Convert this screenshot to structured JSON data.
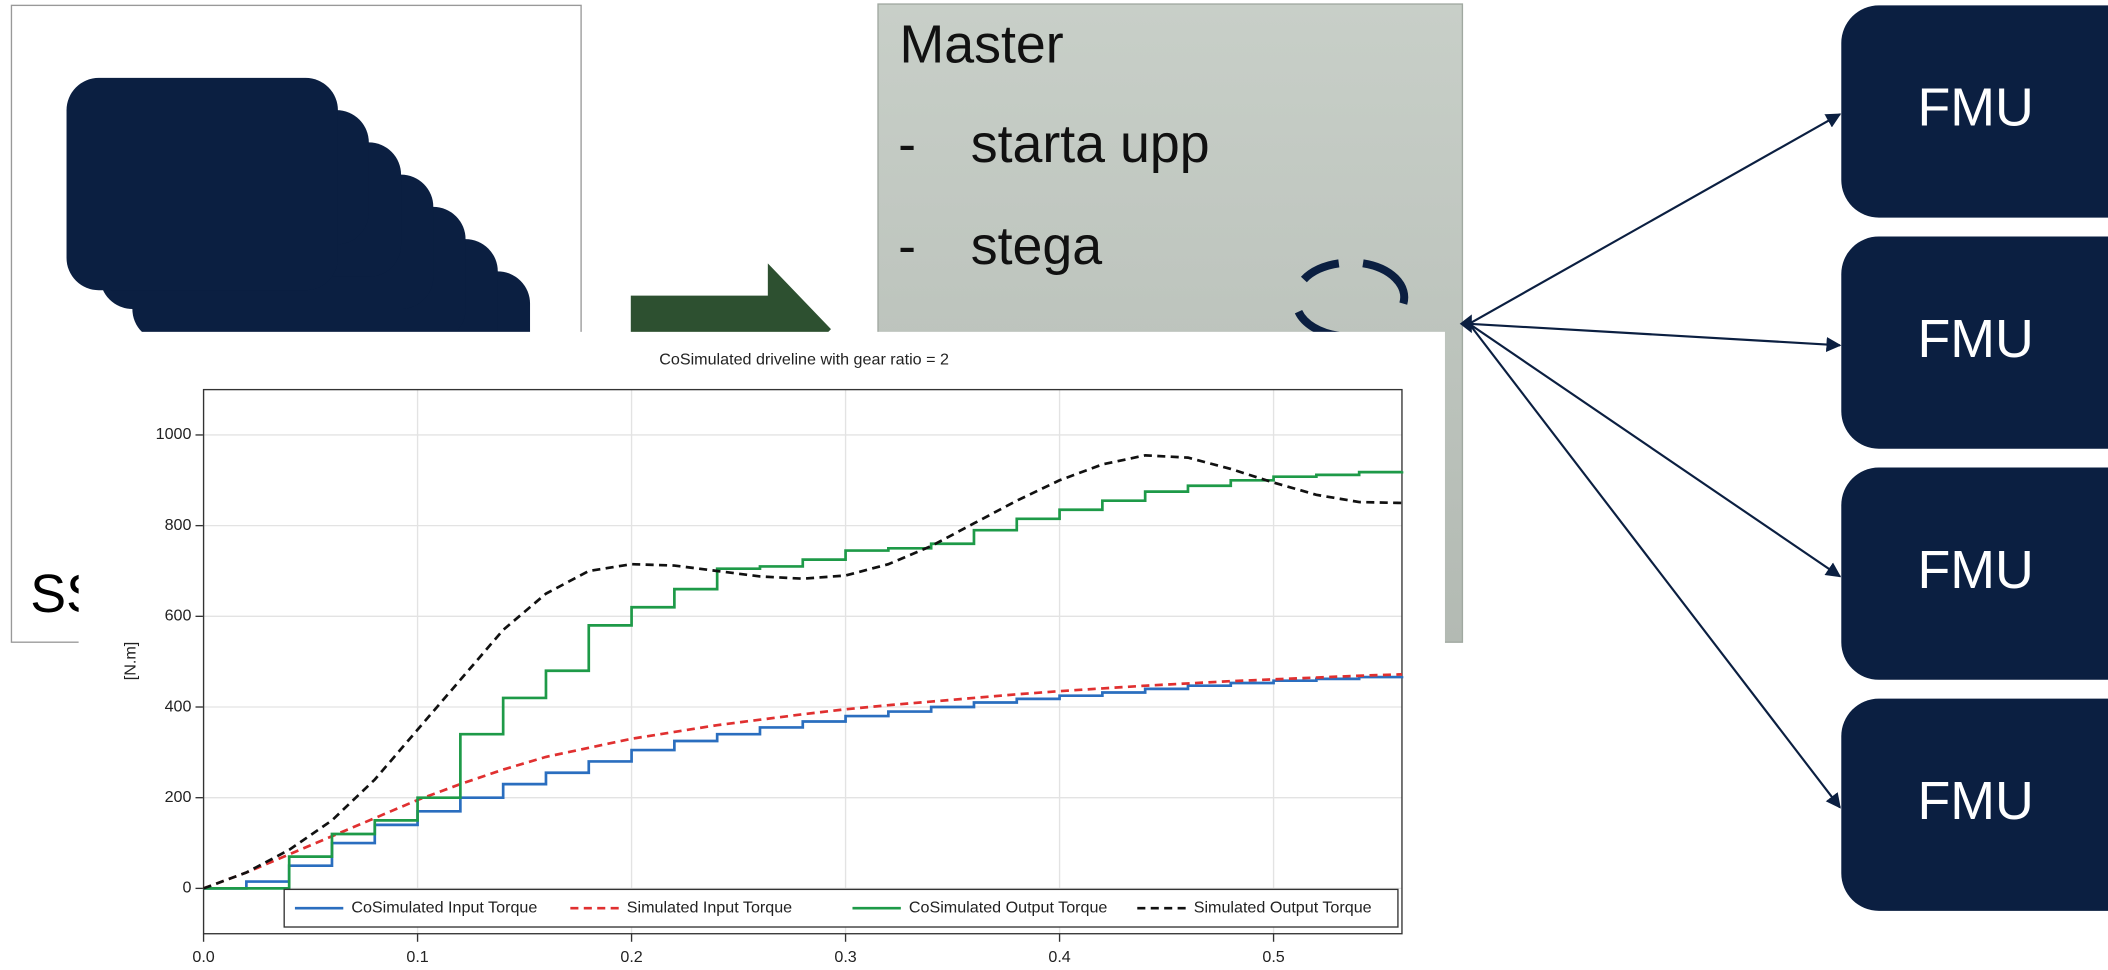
{
  "slide": {
    "master_title": "Master",
    "bullets": [
      {
        "marker": "-",
        "text": "starta upp"
      },
      {
        "marker": "-",
        "text": "stega"
      }
    ],
    "ssp_label": "SS",
    "fmus": [
      "FMU",
      "FMU",
      "FMU",
      "FMU"
    ]
  },
  "chart_data": {
    "type": "line",
    "title": "CoSimulated driveline with gear ratio = 2",
    "ylabel": "[N.m]",
    "xlim": [
      0,
      0.56
    ],
    "ylim": [
      -100,
      1100
    ],
    "xticks": [
      {
        "value": 0,
        "label": "0.0"
      },
      0.1,
      0.2,
      0.3,
      0.4,
      0.5
    ],
    "yticks": [
      0,
      200,
      400,
      600,
      800,
      1000
    ],
    "grid": true,
    "legend": "lower right",
    "x": [
      0,
      0.02,
      0.04,
      0.06,
      0.08,
      0.1,
      0.12,
      0.14,
      0.16,
      0.18,
      0.2,
      0.22,
      0.24,
      0.26,
      0.28,
      0.3,
      0.32,
      0.34,
      0.36,
      0.38,
      0.4,
      0.42,
      0.44,
      0.46,
      0.48,
      0.5,
      0.52,
      0.54,
      0.56
    ],
    "series": [
      {
        "name": "CoSimulated Input Torque",
        "color": "#2a6ebf",
        "step": true,
        "dash": false,
        "values": [
          0,
          15,
          50,
          100,
          140,
          170,
          200,
          230,
          255,
          280,
          305,
          325,
          340,
          355,
          368,
          380,
          390,
          400,
          410,
          418,
          425,
          432,
          440,
          447,
          453,
          458,
          462,
          466,
          468
        ]
      },
      {
        "name": "Simulated Input Torque",
        "color": "#e03030",
        "step": false,
        "dash": true,
        "values": [
          0,
          35,
          75,
          115,
          155,
          195,
          230,
          262,
          290,
          310,
          330,
          345,
          360,
          372,
          384,
          395,
          404,
          412,
          420,
          428,
          435,
          441,
          447,
          452,
          457,
          461,
          465,
          469,
          472
        ]
      },
      {
        "name": "CoSimulated Output Torque",
        "color": "#1e9a48",
        "step": true,
        "dash": false,
        "values": [
          0,
          0,
          70,
          120,
          150,
          200,
          340,
          420,
          480,
          580,
          620,
          660,
          705,
          710,
          725,
          745,
          750,
          760,
          790,
          815,
          835,
          855,
          875,
          888,
          900,
          908,
          912,
          918,
          920
        ]
      },
      {
        "name": "Simulated Output Torque",
        "color": "#111111",
        "step": false,
        "dash": true,
        "values": [
          0,
          35,
          85,
          150,
          240,
          350,
          460,
          570,
          650,
          700,
          715,
          712,
          700,
          688,
          683,
          690,
          715,
          755,
          805,
          855,
          900,
          935,
          955,
          950,
          925,
          895,
          868,
          852,
          850
        ]
      }
    ]
  }
}
